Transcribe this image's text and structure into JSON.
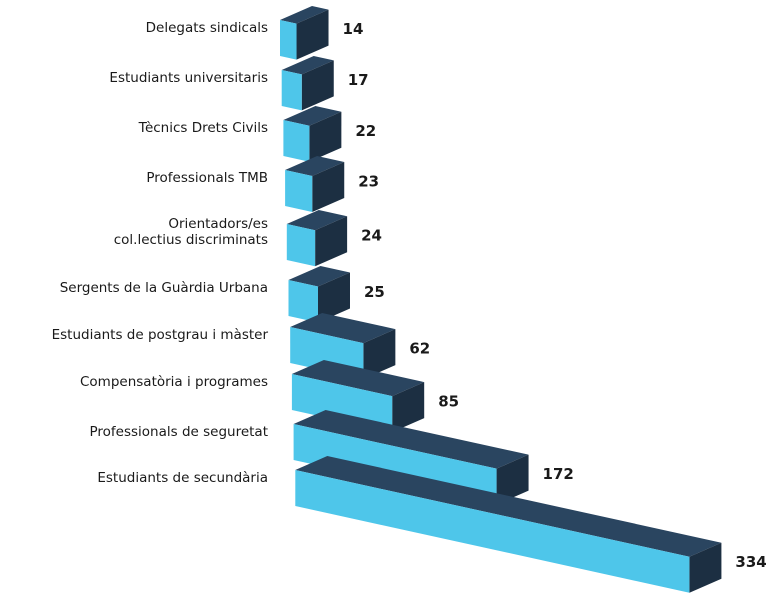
{
  "chart_data": {
    "type": "bar3d",
    "categories": [
      "Delegats sindicals",
      "Estudiants universitaris",
      "Tècnics Drets Civils",
      "Professionals TMB",
      "Orientadors/es\ncol.lectius discriminats",
      "Sergents de la Guàrdia Urbana",
      "Estudiants de postgrau i màster",
      "Compensatòria i programes",
      "Professionals de seguretat",
      "Estudiants de secundària"
    ],
    "values": [
      14,
      17,
      22,
      23,
      24,
      25,
      62,
      85,
      172,
      334
    ],
    "colors": {
      "front": "#4ec6ea",
      "top": "#2a4560",
      "side": "#1c2f42"
    }
  }
}
